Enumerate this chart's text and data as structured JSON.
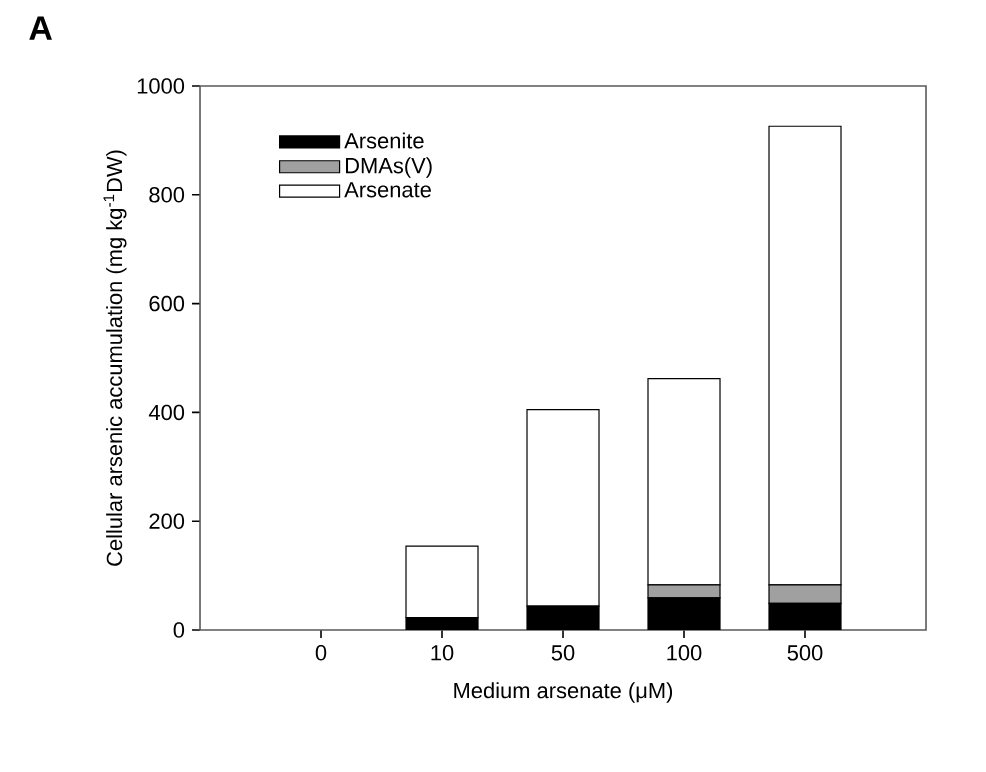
{
  "chart_data": {
    "type": "bar",
    "title": "A",
    "xlabel": "Medium arsenate (μM)",
    "ylabel": "Cellular arsenic accumulation (mg kg$^{-1}$DW)",
    "categories": [
      "0",
      "10",
      "50",
      "100",
      "500"
    ],
    "stacked": true,
    "series": [
      {
        "name": "Arsenite",
        "color": "#000000",
        "values": [
          0,
          23,
          44,
          59,
          49
        ]
      },
      {
        "name": "DMAs(V)",
        "color": "#a0a0a0",
        "values": [
          0,
          0,
          0,
          24,
          34
        ]
      },
      {
        "name": "Arsenate",
        "color": "#ffffff",
        "values": [
          0,
          131,
          361,
          379,
          843
        ]
      }
    ],
    "ylim": [
      0,
      1000
    ],
    "yticks": [
      0,
      200,
      400,
      600,
      800,
      1000
    ],
    "legend": "top left"
  }
}
